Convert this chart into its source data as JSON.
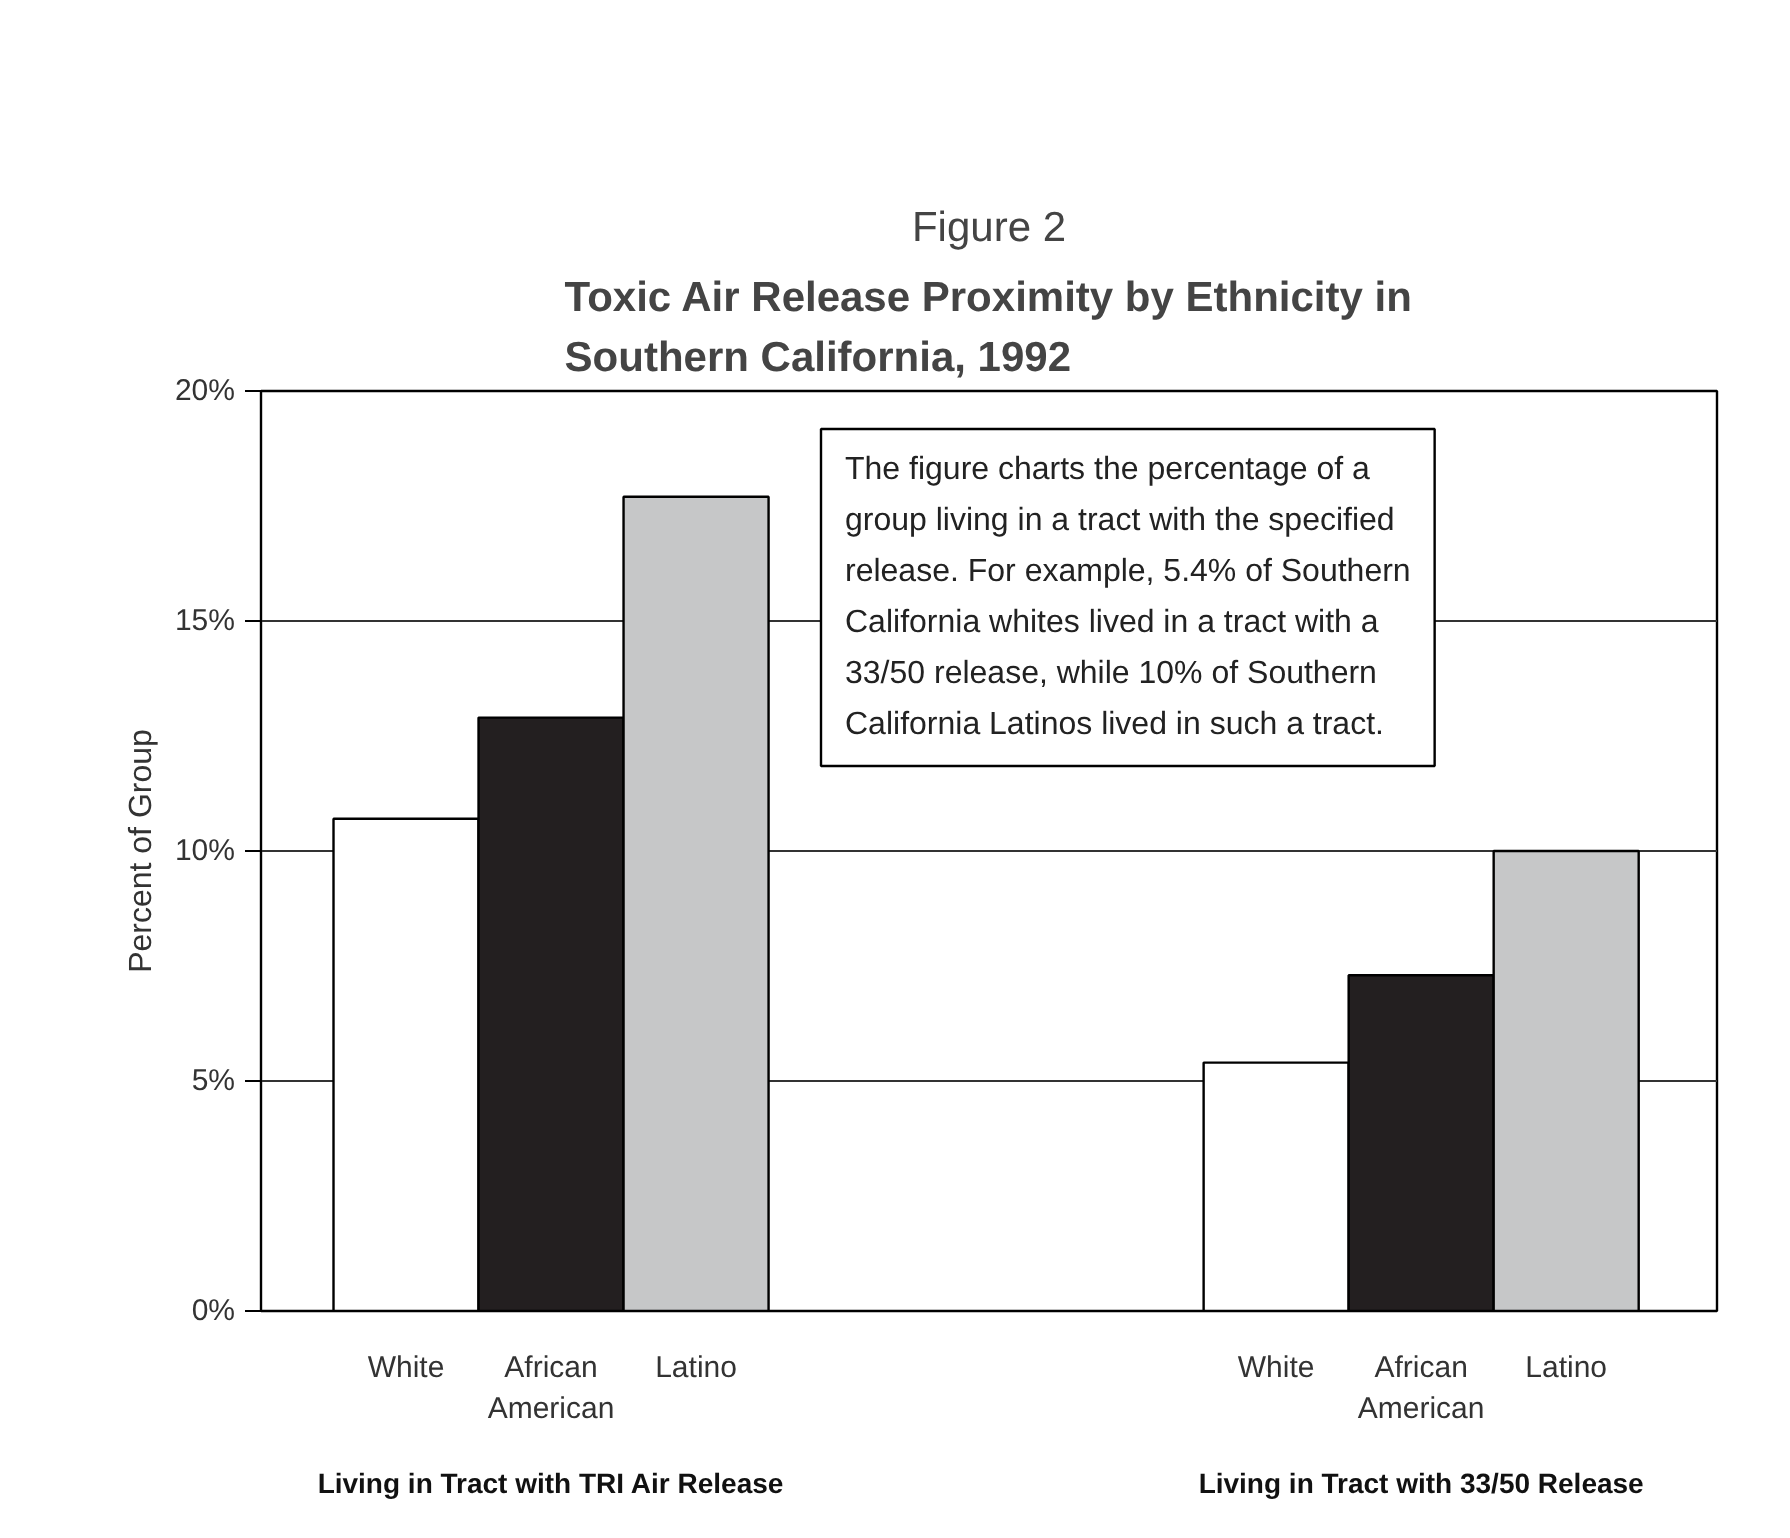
{
  "chart_data": {
    "type": "bar",
    "title": "Figure 2",
    "subtitle": "Toxic Air Release Proximity by Ethnicity in Southern California, 1992",
    "ylabel": "Percent of Group",
    "categories": [
      "Living in Tract with TRI Air Release",
      "Living in Tract with 33/50 Release"
    ],
    "series": [
      {
        "name": "White",
        "color": "#ffffff",
        "values": [
          10.7,
          5.4
        ]
      },
      {
        "name": "African American",
        "color": "#231f20",
        "values": [
          12.9,
          7.3
        ]
      },
      {
        "name": "Latino",
        "color": "#c6c7c8",
        "values": [
          17.7,
          10.0
        ]
      }
    ],
    "ylim": [
      0,
      20
    ],
    "yticks": [
      {
        "value": 0,
        "label": "0%"
      },
      {
        "value": 5,
        "label": "5%"
      },
      {
        "value": 10,
        "label": "10%"
      },
      {
        "value": 15,
        "label": "15%"
      },
      {
        "value": 20,
        "label": "20%"
      }
    ],
    "grid": "y",
    "legend": false,
    "annotations": [
      "The figure charts the percentage of a group living in a tract with the specified release. For example, 5.4% of Southern California whites lived in a tract with a 33/50 release, while 10% of Southern California Latinos lived in such a tract."
    ]
  }
}
